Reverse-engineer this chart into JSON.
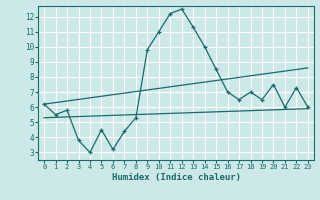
{
  "xlabel": "Humidex (Indice chaleur)",
  "background_color": "#cce8e8",
  "grid_color": "#ffffff",
  "line_color": "#1a6b6b",
  "xlim": [
    -0.5,
    23.5
  ],
  "ylim": [
    2.5,
    12.7
  ],
  "xticks": [
    0,
    1,
    2,
    3,
    4,
    5,
    6,
    7,
    8,
    9,
    10,
    11,
    12,
    13,
    14,
    15,
    16,
    17,
    18,
    19,
    20,
    21,
    22,
    23
  ],
  "yticks": [
    3,
    4,
    5,
    6,
    7,
    8,
    9,
    10,
    11,
    12
  ],
  "line1_x": [
    0,
    1,
    2,
    3,
    4,
    5,
    6,
    7,
    8,
    9,
    10,
    11,
    12,
    13,
    14,
    15,
    16,
    17,
    18,
    19,
    20,
    21,
    22,
    23
  ],
  "line1_y": [
    6.2,
    5.5,
    5.8,
    3.8,
    3.0,
    4.5,
    3.2,
    4.4,
    5.3,
    9.8,
    11.0,
    12.2,
    12.5,
    11.3,
    10.0,
    8.5,
    7.0,
    6.5,
    7.0,
    6.5,
    7.5,
    6.0,
    7.3,
    6.0
  ],
  "line2_x": [
    0,
    23
  ],
  "line2_y": [
    6.2,
    8.6
  ],
  "line3_x": [
    0,
    23
  ],
  "line3_y": [
    5.3,
    5.9
  ]
}
